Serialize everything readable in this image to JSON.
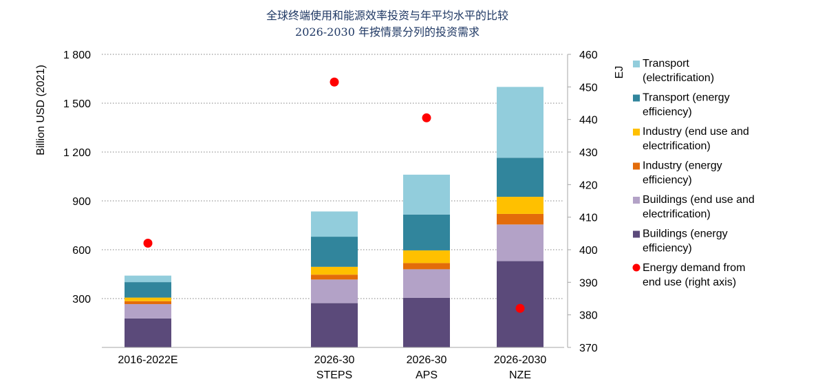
{
  "chart_data": {
    "type": "bar",
    "stacked": true,
    "title": "全球终端使用和能源效率投资与年平均水平的比较",
    "subtitle": "2026-2030 年按情景分列的投资需求",
    "ylabel": "Billion USD (2021)",
    "y2label": "EJ",
    "ylim": [
      0,
      1800
    ],
    "y2lim": [
      370,
      460
    ],
    "yticks": [
      "300",
      "600",
      "900",
      "1 200",
      "1 500",
      "1 800"
    ],
    "yticks_values": [
      300,
      600,
      900,
      1200,
      1500,
      1800
    ],
    "y2ticks": [
      "370",
      "380",
      "390",
      "400",
      "410",
      "420",
      "430",
      "440",
      "450",
      "460"
    ],
    "y2ticks_values": [
      370,
      380,
      390,
      400,
      410,
      420,
      430,
      440,
      450,
      460
    ],
    "grid": true,
    "legend_position": "right",
    "categories": [
      {
        "line1": "2016-2022E",
        "line2": ""
      },
      {
        "line1": "2026-30",
        "line2": "STEPS"
      },
      {
        "line1": "2026-30",
        "line2": "APS"
      },
      {
        "line1": "2026-2030",
        "line2": "NZE"
      }
    ],
    "series": [
      {
        "name_lines": [
          "Buildings (energy",
          "efficiency)"
        ],
        "color": "#5b4a7a",
        "values": [
          178,
          272,
          305,
          530
        ]
      },
      {
        "name_lines": [
          "Buildings (end use and",
          "electrification)"
        ],
        "color": "#b3a2c7",
        "values": [
          88,
          145,
          175,
          225
        ]
      },
      {
        "name_lines": [
          "Industry (energy",
          "efficiency)"
        ],
        "color": "#e36c0a",
        "values": [
          18,
          30,
          38,
          65
        ]
      },
      {
        "name_lines": [
          "Industry (end use and",
          "electrification)"
        ],
        "color": "#ffc000",
        "values": [
          22,
          48,
          78,
          105
        ]
      },
      {
        "name_lines": [
          "Transport (energy",
          "efficiency)"
        ],
        "color": "#31859c",
        "values": [
          95,
          185,
          220,
          240
        ]
      },
      {
        "name_lines": [
          "Transport",
          "(electrification)"
        ],
        "color": "#92cddc",
        "values": [
          40,
          155,
          245,
          435
        ]
      }
    ],
    "line_series": {
      "name_lines": [
        "Energy demand from",
        "end use (right axis)"
      ],
      "color": "#ff0000",
      "axis": "right",
      "values": [
        402,
        451.5,
        440.5,
        382
      ]
    }
  }
}
